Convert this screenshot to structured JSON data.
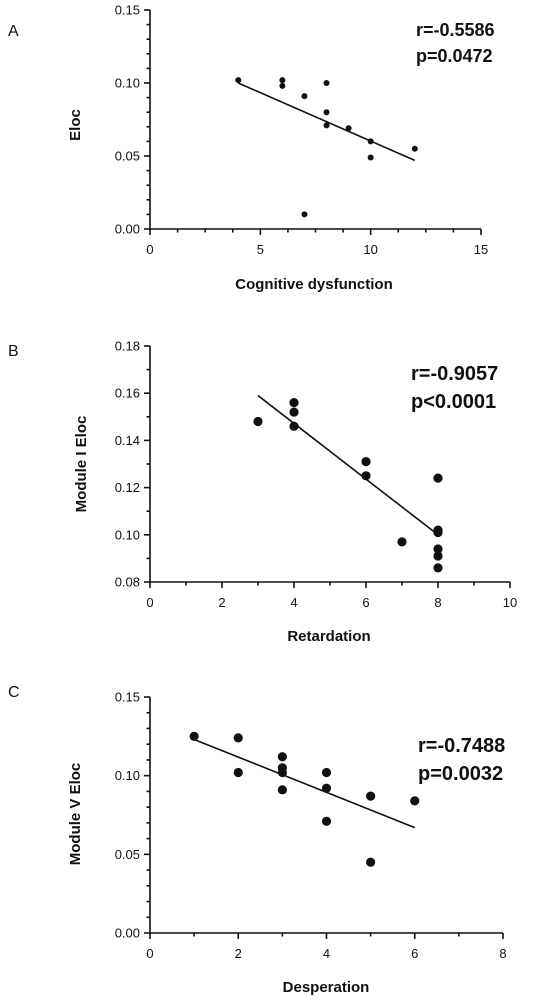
{
  "chart_data": [
    {
      "type": "scatter",
      "panel": "A",
      "xlabel": "Cognitive dysfunction",
      "ylabel": "Eloc",
      "xlim": [
        0,
        15
      ],
      "ylim": [
        0.0,
        0.15
      ],
      "xticks": [
        "0",
        "5",
        "10",
        "15"
      ],
      "yticks": [
        "0.00",
        "0.05",
        "0.10",
        "0.15"
      ],
      "stats": [
        "r=-0.5586",
        "p=0.0472"
      ],
      "points": [
        {
          "x": 4,
          "y": 0.102
        },
        {
          "x": 6,
          "y": 0.102
        },
        {
          "x": 6,
          "y": 0.098
        },
        {
          "x": 7,
          "y": 0.091
        },
        {
          "x": 8,
          "y": 0.1
        },
        {
          "x": 8,
          "y": 0.08
        },
        {
          "x": 8,
          "y": 0.071
        },
        {
          "x": 9,
          "y": 0.069
        },
        {
          "x": 10,
          "y": 0.06
        },
        {
          "x": 10,
          "y": 0.049
        },
        {
          "x": 12,
          "y": 0.055
        },
        {
          "x": 7,
          "y": 0.01
        }
      ],
      "fit_line": {
        "x": [
          4,
          12
        ],
        "y": [
          0.1,
          0.047
        ]
      }
    },
    {
      "type": "scatter",
      "panel": "B",
      "xlabel": "Retardation",
      "ylabel": "Module I Eloc",
      "xlim": [
        0,
        10
      ],
      "ylim": [
        0.08,
        0.18
      ],
      "xticks": [
        "0",
        "2",
        "4",
        "6",
        "8",
        "10"
      ],
      "yticks": [
        "0.08",
        "0.10",
        "0.12",
        "0.14",
        "0.16",
        "0.18"
      ],
      "stats": [
        "r=-0.9057",
        "p<0.0001"
      ],
      "points": [
        {
          "x": 3,
          "y": 0.148
        },
        {
          "x": 4,
          "y": 0.156
        },
        {
          "x": 4,
          "y": 0.152
        },
        {
          "x": 4,
          "y": 0.146
        },
        {
          "x": 6,
          "y": 0.131
        },
        {
          "x": 6,
          "y": 0.125
        },
        {
          "x": 7,
          "y": 0.097
        },
        {
          "x": 8,
          "y": 0.124
        },
        {
          "x": 8,
          "y": 0.102
        },
        {
          "x": 8,
          "y": 0.101
        },
        {
          "x": 8,
          "y": 0.094
        },
        {
          "x": 8,
          "y": 0.091
        },
        {
          "x": 8,
          "y": 0.086
        }
      ],
      "fit_line": {
        "x": [
          3,
          8
        ],
        "y": [
          0.159,
          0.1
        ]
      }
    },
    {
      "type": "scatter",
      "panel": "C",
      "xlabel": "Desperation",
      "ylabel": "Module V Eloc",
      "xlim": [
        0,
        8
      ],
      "ylim": [
        0.0,
        0.15
      ],
      "xticks": [
        "0",
        "2",
        "4",
        "6",
        "8"
      ],
      "yticks": [
        "0.00",
        "0.05",
        "0.10",
        "0.15"
      ],
      "stats": [
        "r=-0.7488",
        "p=0.0032"
      ],
      "points": [
        {
          "x": 1,
          "y": 0.125
        },
        {
          "x": 2,
          "y": 0.124
        },
        {
          "x": 2,
          "y": 0.102
        },
        {
          "x": 3,
          "y": 0.112
        },
        {
          "x": 3,
          "y": 0.105
        },
        {
          "x": 3,
          "y": 0.102
        },
        {
          "x": 3,
          "y": 0.091
        },
        {
          "x": 4,
          "y": 0.102
        },
        {
          "x": 4,
          "y": 0.092
        },
        {
          "x": 4,
          "y": 0.071
        },
        {
          "x": 5,
          "y": 0.087
        },
        {
          "x": 5,
          "y": 0.045
        },
        {
          "x": 6,
          "y": 0.084
        }
      ],
      "fit_line": {
        "x": [
          1,
          6
        ],
        "y": [
          0.123,
          0.067
        ]
      }
    }
  ]
}
